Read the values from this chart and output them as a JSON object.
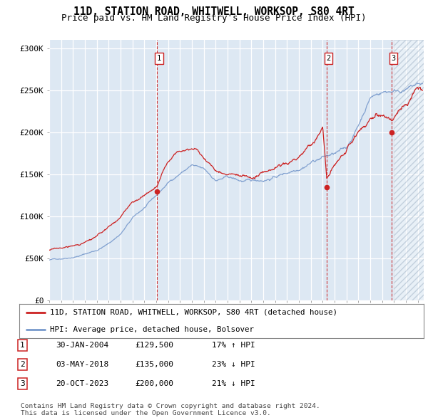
{
  "title": "11D, STATION ROAD, WHITWELL, WORKSOP, S80 4RT",
  "subtitle": "Price paid vs. HM Land Registry's House Price Index (HPI)",
  "ylabel_ticks": [
    "£0",
    "£50K",
    "£100K",
    "£150K",
    "£200K",
    "£250K",
    "£300K"
  ],
  "ytick_vals": [
    0,
    50000,
    100000,
    150000,
    200000,
    250000,
    300000
  ],
  "ylim": [
    0,
    310000
  ],
  "xlim_start": 1995.0,
  "xlim_end": 2026.5,
  "red_line_color": "#cc2222",
  "blue_line_color": "#7799cc",
  "vline_color": "#cc2222",
  "background_color": "#dde8f3",
  "sale_dates": [
    2004.08,
    2018.34,
    2023.8
  ],
  "sale_prices": [
    129500,
    135000,
    200000
  ],
  "sale_labels": [
    "1",
    "2",
    "3"
  ],
  "legend_label_red": "11D, STATION ROAD, WHITWELL, WORKSOP, S80 4RT (detached house)",
  "legend_label_blue": "HPI: Average price, detached house, Bolsover",
  "table_data": [
    [
      "1",
      "30-JAN-2004",
      "£129,500",
      "17% ↑ HPI"
    ],
    [
      "2",
      "03-MAY-2018",
      "£135,000",
      "23% ↓ HPI"
    ],
    [
      "3",
      "20-OCT-2023",
      "£200,000",
      "21% ↓ HPI"
    ]
  ],
  "footer": "Contains HM Land Registry data © Crown copyright and database right 2024.\nThis data is licensed under the Open Government Licence v3.0.",
  "title_fontsize": 10.5,
  "subtitle_fontsize": 9,
  "tick_fontsize": 8
}
